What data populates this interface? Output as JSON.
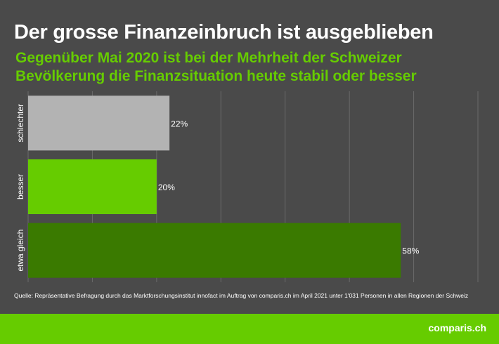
{
  "header": {
    "title": "Der grosse Finanzeinbruch ist ausgeblieben",
    "subtitle": "Gegenüber Mai 2020 ist bei der Mehrheit der Schweizer Bevölkerung die Finanzsituation heute stabil oder besser"
  },
  "chart_data": {
    "type": "bar",
    "orientation": "horizontal",
    "categories": [
      "schlechter",
      "besser",
      "etwa gleich"
    ],
    "values": [
      22,
      20,
      58
    ],
    "data_labels": [
      "22%",
      "20%",
      "58%"
    ],
    "colors": [
      "#b3b3b3",
      "#66cc00",
      "#3a7a00"
    ],
    "xlim": [
      0,
      70
    ],
    "grid": true,
    "title": "",
    "xlabel": "",
    "ylabel": ""
  },
  "footer": {
    "source": "Quelle: Repräsentative Befragung durch das Marktforschungsinstitut innofact im Auftrag von comparis.ch im April 2021 unter 1'031 Personen in allen Regionen der Schweiz",
    "logo": "comparis.ch",
    "accent": "#66cc00",
    "background": "#4a4a4a"
  }
}
